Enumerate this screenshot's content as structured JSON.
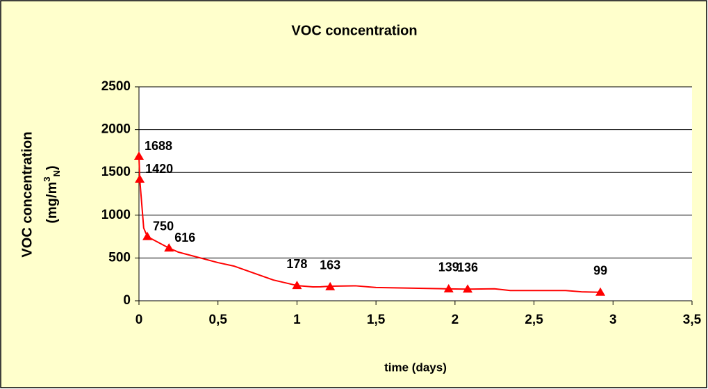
{
  "chart_data": {
    "type": "line",
    "title": "VOC concentration",
    "x_label": "time (days)",
    "y_label": "VOC concentration",
    "y_unit": [
      "(mg/m",
      "3",
      "N",
      ")"
    ],
    "series": [
      {
        "color": "#ff0000",
        "marker": "triangle",
        "x": [
          0,
          0.005,
          0.053,
          0.19,
          1.0,
          1.21,
          1.96,
          2.08,
          2.92
        ],
        "values": [
          1688,
          1420,
          750,
          616,
          178,
          163,
          139,
          136,
          99
        ]
      },
      {
        "color": "#ff0000",
        "x": [
          0,
          0.005,
          0.03,
          0.053,
          0.19,
          0.25,
          0.5,
          0.6,
          0.85,
          1.0,
          1.1,
          1.15,
          1.21,
          1.37,
          1.5,
          1.8,
          1.96,
          2.08,
          2.25,
          2.35,
          2.7,
          2.8,
          2.92
        ],
        "values": [
          1688,
          1420,
          850,
          750,
          616,
          568,
          446,
          406,
          243,
          178,
          162,
          163,
          170,
          175,
          155,
          145,
          139,
          136,
          140,
          120,
          120,
          105,
          99
        ]
      }
    ],
    "xlim": [
      0,
      3.5
    ],
    "xticks": [
      0,
      {
        "value": 0.5,
        "label": "0,5"
      },
      1,
      {
        "value": 1.5,
        "label": "1,5"
      },
      2,
      {
        "value": 2.5,
        "label": "2,5"
      },
      3,
      {
        "value": 3.5,
        "label": "3,5"
      }
    ],
    "ylim": [
      0,
      2500
    ],
    "yticks": [
      0,
      500,
      1000,
      1500,
      2000,
      2500
    ],
    "grid": true,
    "background": "#ffffcc"
  }
}
